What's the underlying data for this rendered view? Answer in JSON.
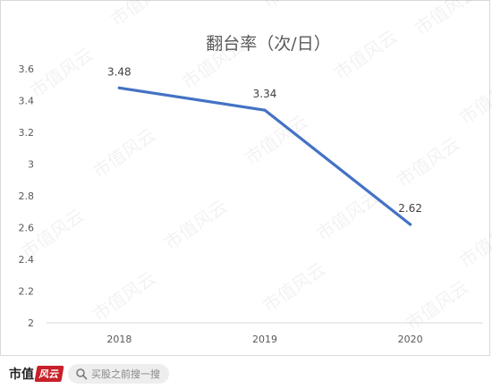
{
  "chart_data": {
    "type": "line",
    "title": "翻台率（次/日）",
    "categories": [
      "2018",
      "2019",
      "2020"
    ],
    "series": [
      {
        "values": [
          3.48,
          3.34,
          2.62
        ],
        "color": "#4472c4"
      }
    ],
    "data_labels": [
      "3.48",
      "3.34",
      "2.62"
    ],
    "ylim": [
      2,
      3.6
    ],
    "yticks": [
      "2",
      "2.2",
      "2.4",
      "2.6",
      "2.8",
      "3",
      "3.2",
      "3.4",
      "3.6"
    ],
    "grid": false,
    "legend": "none"
  },
  "watermark": "市值风云",
  "footer": {
    "brand_text": "市值",
    "brand_logo_text": "风云",
    "search_placeholder": "买股之前搜一搜"
  }
}
